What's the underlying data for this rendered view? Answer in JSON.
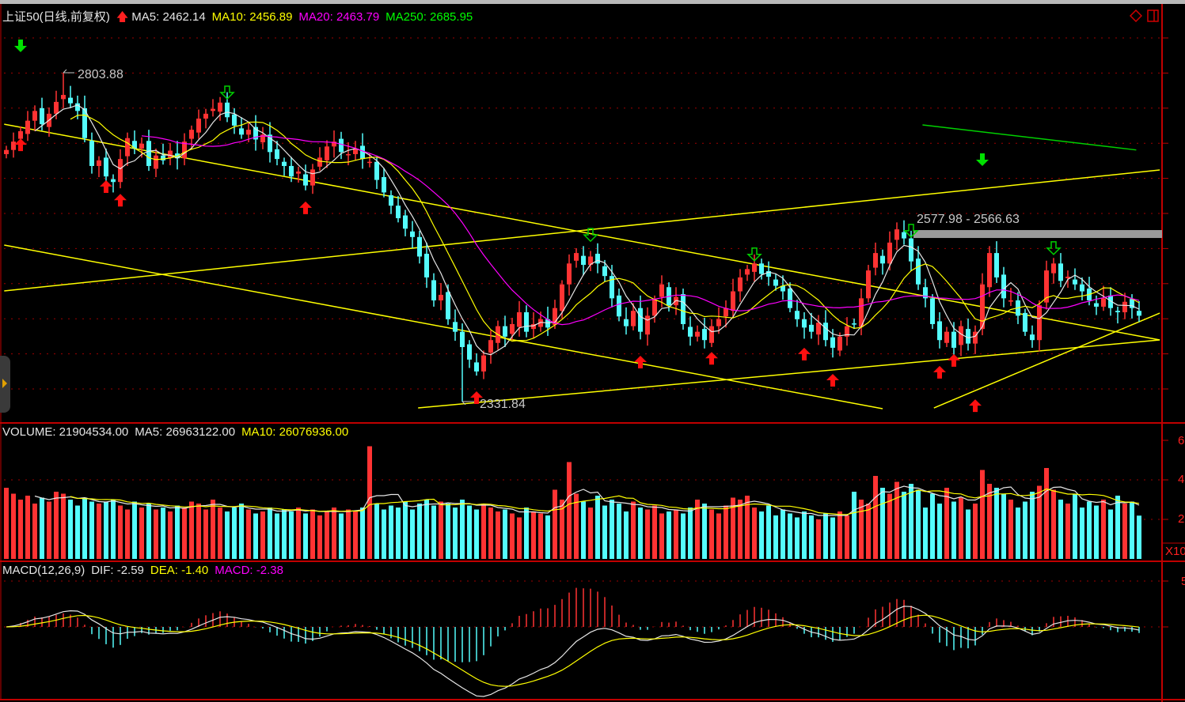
{
  "header": {
    "title": "上证50(日线,前复权)",
    "signal_icon": "red-up-arrow",
    "ma5": "MA5: 2462.14",
    "ma10": "MA10: 2456.89",
    "ma20": "MA20: 2463.79",
    "ma250": "MA250: 2685.95"
  },
  "volume_header": {
    "volume": "VOLUME: 21904534.00",
    "ma5": "MA5: 26963122.00",
    "ma10": "MA10: 26076936.00"
  },
  "macd_header": {
    "name": "MACD(12,26,9)",
    "dif": "DIF: -2.59",
    "dea": "DEA: -1.40",
    "macd": "MACD: -2.38"
  },
  "axes": {
    "volume_ticks": [
      "6",
      "4",
      "2"
    ],
    "volume_unit": "X10",
    "macd_tick": "5"
  },
  "colors": {
    "up": "#ff3333",
    "down": "#54fcfc",
    "ma5": "#e6e6e6",
    "ma10": "#ffff00",
    "ma20": "#ff00ff",
    "ma250": "#00d000",
    "trend": "#ffff00",
    "axis": "#c00000"
  },
  "annotations": {
    "high_label": "2803.88",
    "high_index": 8,
    "high_value": 2803.88,
    "low_label": "2331.84",
    "low_index": 64,
    "low_value": 2331.84,
    "band_label": "2577.98 - 2566.63",
    "band_start_index": 126,
    "band_high": 2577.98,
    "band_low": 2566.63
  },
  "chart_data": {
    "type": "candlestick",
    "title": "上证50(日线,前复权)",
    "close": [
      2693,
      2705,
      2720,
      2735,
      2749,
      2730,
      2745,
      2762,
      2772,
      2760,
      2749,
      2710,
      2670,
      2678,
      2655,
      2647,
      2680,
      2710,
      2695,
      2702,
      2670,
      2685,
      2678,
      2692,
      2681,
      2705,
      2722,
      2738,
      2745,
      2752,
      2761,
      2740,
      2728,
      2715,
      2722,
      2708,
      2715,
      2690,
      2680,
      2670,
      2655,
      2662,
      2642,
      2665,
      2682,
      2698,
      2705,
      2690,
      2687,
      2695,
      2680,
      2676,
      2650,
      2632,
      2613,
      2595,
      2580,
      2568,
      2540,
      2510,
      2477,
      2485,
      2450,
      2432,
      2410,
      2392,
      2375,
      2398,
      2420,
      2440,
      2425,
      2443,
      2460,
      2432,
      2443,
      2450,
      2438,
      2466,
      2500,
      2530,
      2545,
      2528,
      2540,
      2530,
      2512,
      2480,
      2454,
      2440,
      2462,
      2432,
      2455,
      2478,
      2500,
      2470,
      2482,
      2443,
      2425,
      2432,
      2420,
      2440,
      2450,
      2466,
      2490,
      2510,
      2522,
      2530,
      2515,
      2511,
      2498,
      2490,
      2466,
      2450,
      2438,
      2432,
      2445,
      2420,
      2409,
      2425,
      2440,
      2443,
      2480,
      2520,
      2545,
      2530,
      2560,
      2579,
      2566,
      2533,
      2500,
      2480,
      2443,
      2420,
      2432,
      2409,
      2440,
      2415,
      2432,
      2500,
      2545,
      2510,
      2480,
      2477,
      2455,
      2432,
      2420,
      2470,
      2520,
      2530,
      2505,
      2511,
      2500,
      2490,
      2477,
      2468,
      2480,
      2466,
      2460,
      2475,
      2466,
      2455
    ],
    "volume_x1e7": [
      3.6,
      3.3,
      3.0,
      3.2,
      2.8,
      3.1,
      2.9,
      3.4,
      3.3,
      3.0,
      2.7,
      3.1,
      2.9,
      2.8,
      2.9,
      3.0,
      2.7,
      2.5,
      2.9,
      2.6,
      2.8,
      2.5,
      2.6,
      2.4,
      2.7,
      2.6,
      2.9,
      2.8,
      2.5,
      3.0,
      2.6,
      2.4,
      2.6,
      2.8,
      2.5,
      2.3,
      2.4,
      2.6,
      2.3,
      2.5,
      2.4,
      2.6,
      2.3,
      2.5,
      2.2,
      2.4,
      2.6,
      2.3,
      2.5,
      2.4,
      2.6,
      5.7,
      2.8,
      2.5,
      2.7,
      2.6,
      2.9,
      2.5,
      2.8,
      3.0,
      2.7,
      2.9,
      2.8,
      2.6,
      3.0,
      2.7,
      2.5,
      2.8,
      2.6,
      2.4,
      2.5,
      2.3,
      2.1,
      2.6,
      2.4,
      2.3,
      2.2,
      3.5,
      3.0,
      4.9,
      3.3,
      2.9,
      2.6,
      3.2,
      2.7,
      3.0,
      2.8,
      2.4,
      2.9,
      2.6,
      2.5,
      2.7,
      2.3,
      2.4,
      2.5,
      2.3,
      2.6,
      3.0,
      2.8,
      2.5,
      2.3,
      2.7,
      3.1,
      3.0,
      3.2,
      2.6,
      2.4,
      2.7,
      2.2,
      2.5,
      2.3,
      2.1,
      2.4,
      2.2,
      2.0,
      2.3,
      2.1,
      2.4,
      2.2,
      3.4,
      3.0,
      2.8,
      4.2,
      3.6,
      3.3,
      3.9,
      3.4,
      3.8,
      3.5,
      2.6,
      3.3,
      2.8,
      3.6,
      2.9,
      3.1,
      2.5,
      2.8,
      4.5,
      3.8,
      3.6,
      3.3,
      3.0,
      2.6,
      2.9,
      3.4,
      3.7,
      4.6,
      3.5,
      3.0,
      2.8,
      3.3,
      2.6,
      2.9,
      2.7,
      3.0,
      2.5,
      3.2,
      2.8,
      2.9,
      2.19
    ],
    "ma250_segment": [
      {
        "index": 128.6,
        "value": 2729
      },
      {
        "index": 158.6,
        "value": 2693
      }
    ],
    "trend_lines": [
      [
        {
          "index": -0.3,
          "value": 2730
        },
        {
          "index": 161.9,
          "value": 2420.3
        }
      ],
      [
        {
          "index": -0.3,
          "value": 2556.5
        },
        {
          "index": 123,
          "value": 2321.5
        }
      ],
      [
        {
          "index": -0.3,
          "value": 2490.6
        },
        {
          "index": 161.9,
          "value": 2664.3
        }
      ],
      [
        {
          "index": 57.8,
          "value": 2322.6
        },
        {
          "index": 161.9,
          "value": 2420.3
        }
      ],
      [
        {
          "index": 130.2,
          "value": 2322.6
        },
        {
          "index": 161.9,
          "value": 2458.8
        }
      ]
    ],
    "signals": [
      {
        "type": "buy",
        "index": 2,
        "value": 2709.6
      },
      {
        "type": "buy",
        "index": 14,
        "value": 2649.5
      },
      {
        "type": "buy",
        "index": 16,
        "value": 2630
      },
      {
        "type": "buy",
        "index": 42,
        "value": 2619
      },
      {
        "type": "buy",
        "index": 66,
        "value": 2346.5
      },
      {
        "type": "buy",
        "index": 89,
        "value": 2397.5
      },
      {
        "type": "buy",
        "index": 99,
        "value": 2403
      },
      {
        "type": "buy",
        "index": 112,
        "value": 2409
      },
      {
        "type": "buy",
        "index": 116,
        "value": 2371.5
      },
      {
        "type": "buy",
        "index": 131,
        "value": 2383
      },
      {
        "type": "buy",
        "index": 133,
        "value": 2400
      },
      {
        "type": "buy",
        "index": 136,
        "value": 2335
      },
      {
        "type": "sell",
        "index": 2,
        "value": 2833.4
      },
      {
        "type": "sell",
        "index": 137,
        "value": 2670
      },
      {
        "type": "sell-hollow",
        "index": 31,
        "value": 2766.4
      },
      {
        "type": "sell-hollow",
        "index": 82,
        "value": 2562
      },
      {
        "type": "sell-hollow",
        "index": 105,
        "value": 2534
      },
      {
        "type": "sell-hollow",
        "index": 127,
        "value": 2568
      },
      {
        "type": "sell-hollow",
        "index": 147,
        "value": 2543
      }
    ]
  }
}
